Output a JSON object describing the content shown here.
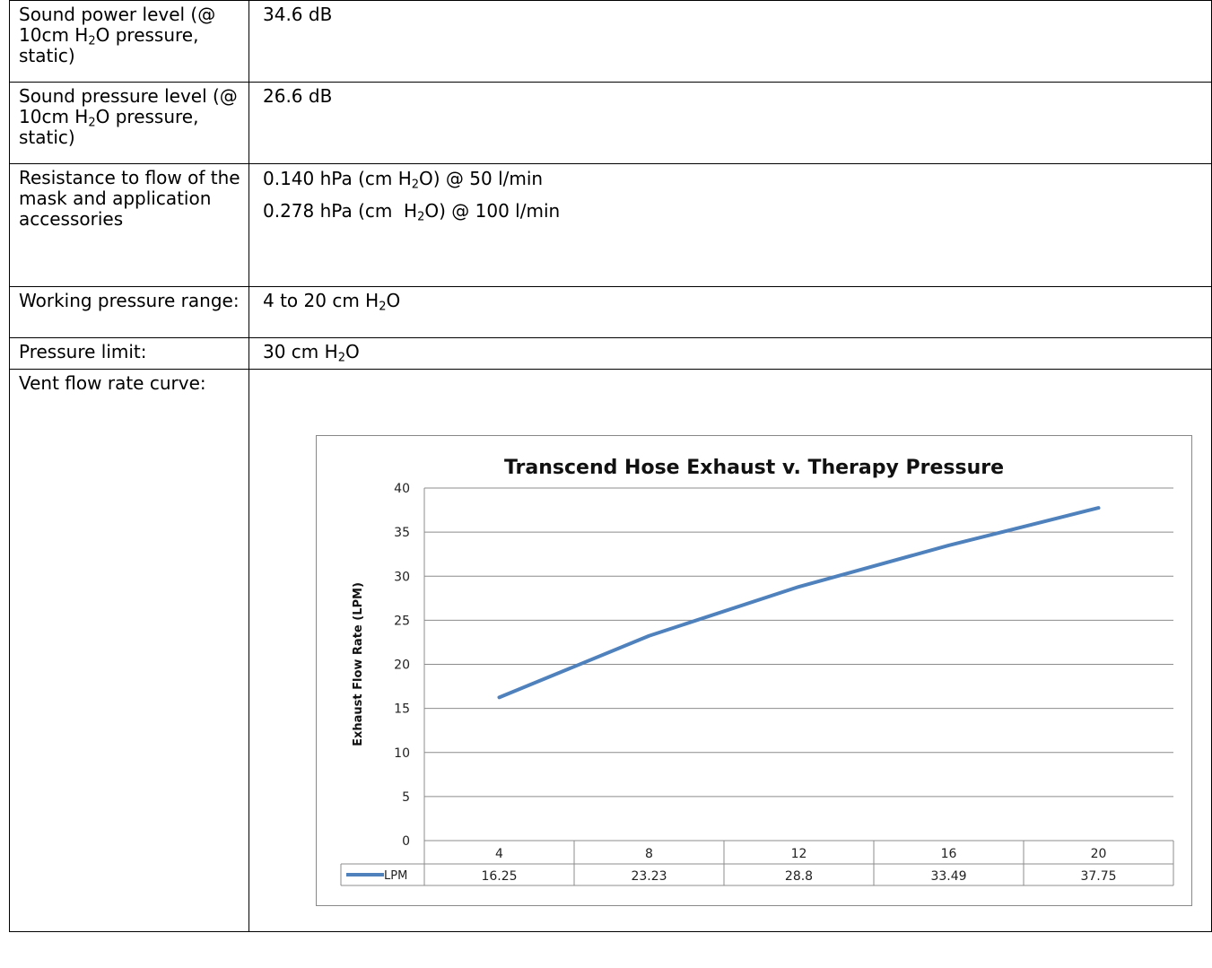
{
  "rows": [
    {
      "label": "Sound power level (@ 10cm H₂O pressure, static)",
      "value": "34.6 dB"
    },
    {
      "label": "Sound pressure level (@ 10cm H₂O pressure, static)",
      "value": "26.6 dB"
    },
    {
      "label": "Resistance to flow of the mask and application accessories",
      "value_lines": [
        "0.140 hPa (cm H₂O) @ 50 l/min",
        "0.278 hPa (cm  H₂O) @ 100 l/min"
      ]
    },
    {
      "label": "Working pressure range:",
      "value": "4 to 20 cm H₂O"
    },
    {
      "label": "Pressure limit:",
      "value": "30 cm H₂O"
    },
    {
      "label": "Vent flow rate curve:"
    }
  ],
  "chart_data": {
    "type": "line",
    "title": "Transcend Hose Exhaust v. Therapy Pressure",
    "xlabel": "",
    "ylabel": "Exhaust Flow Rate (LPM)",
    "categories": [
      "4",
      "8",
      "12",
      "16",
      "20"
    ],
    "series": [
      {
        "name": "LPM",
        "values": [
          16.25,
          23.23,
          28.8,
          33.49,
          37.75
        ],
        "color": "#4f81bd"
      }
    ],
    "ylim": [
      0,
      40
    ],
    "yticks": [
      0,
      5,
      10,
      15,
      20,
      25,
      30,
      35,
      40
    ],
    "data_table": true,
    "grid": true
  }
}
